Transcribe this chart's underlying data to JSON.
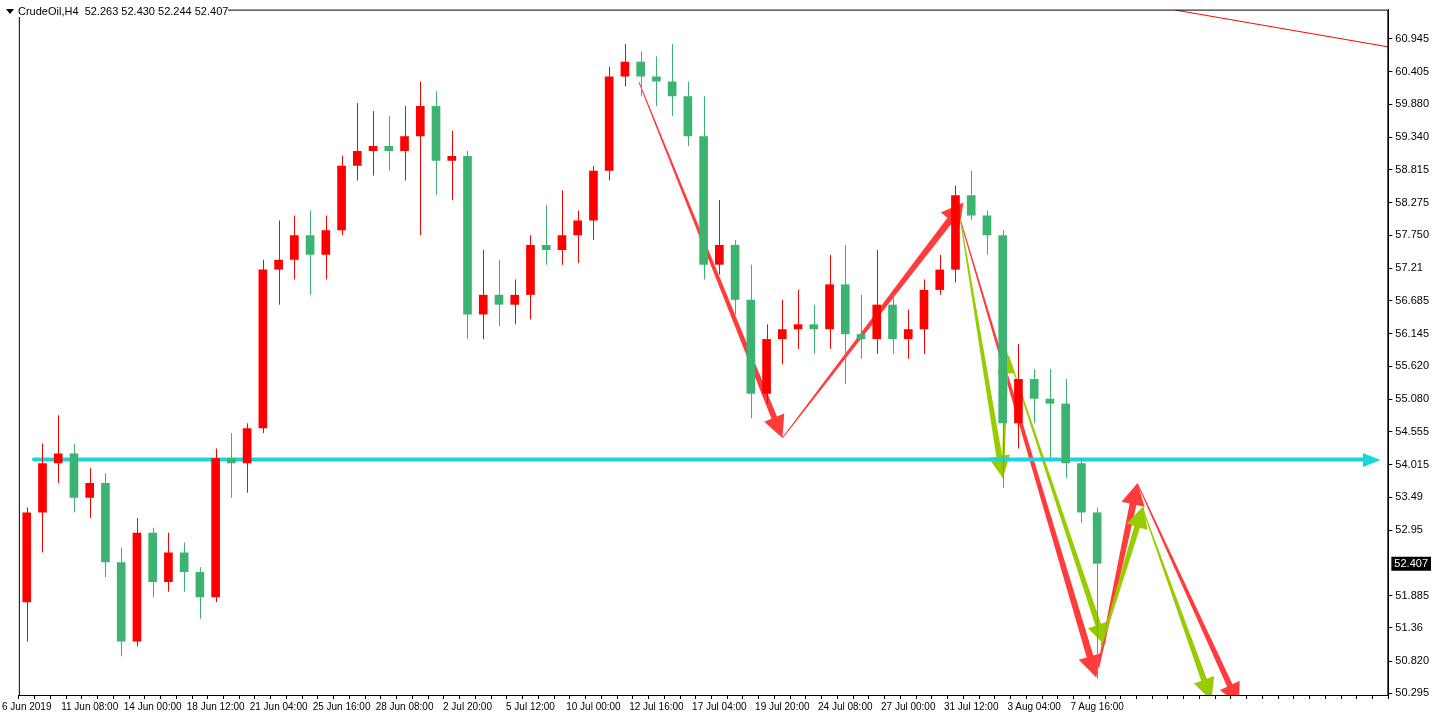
{
  "chart_data": {
    "type": "candlestick",
    "title": "CrudeOil,H4  52.263 52.430 52.244 52.407",
    "categories": [
      "6 Jun 2019",
      null,
      null,
      null,
      "11 Jun 08:00",
      null,
      null,
      null,
      "14 Jun 00:00",
      null,
      null,
      null,
      "18 Jun 12:00",
      null,
      null,
      null,
      "21 Jun 04:00",
      null,
      null,
      null,
      "25 Jun 16:00",
      null,
      null,
      null,
      "28 Jun 08:00",
      null,
      null,
      null,
      "2 Jul 20:00",
      null,
      null,
      null,
      "5 Jul 12:00",
      null,
      null,
      null,
      "10 Jul 00:00",
      null,
      null,
      null,
      "12 Jul 16:00",
      null,
      null,
      null,
      "17 Jul 04:00",
      null,
      null,
      null,
      "19 Jul 20:00",
      null,
      null,
      null,
      "24 Jul 08:00",
      null,
      null,
      null,
      "27 Jul 00:00",
      null,
      null,
      null,
      "31 Jul 12:00",
      null,
      null,
      null,
      "3 Aug 04:00",
      null,
      null,
      null,
      "7 Aug 16:00",
      null,
      null,
      null,
      null,
      null,
      null,
      null,
      null,
      null,
      null,
      null,
      null,
      null,
      null,
      null,
      null,
      null,
      null
    ],
    "ohlc": [
      [
        51.78,
        53.32,
        51.14,
        53.24
      ],
      [
        53.24,
        54.36,
        52.59,
        54.04
      ],
      [
        54.04,
        54.82,
        53.72,
        54.2
      ],
      [
        54.2,
        54.36,
        53.24,
        53.48
      ],
      [
        53.48,
        53.96,
        53.15,
        53.72
      ],
      [
        53.72,
        53.88,
        52.19,
        52.43
      ],
      [
        52.43,
        52.67,
        50.9,
        51.14
      ],
      [
        51.14,
        53.15,
        51.06,
        52.91
      ],
      [
        52.91,
        52.99,
        51.86,
        52.11
      ],
      [
        52.11,
        52.91,
        51.95,
        52.59
      ],
      [
        52.59,
        52.75,
        51.95,
        52.27
      ],
      [
        52.27,
        52.35,
        51.51,
        51.86
      ],
      [
        51.86,
        54.28,
        51.78,
        54.12
      ],
      [
        54.12,
        54.53,
        53.48,
        54.04
      ],
      [
        54.04,
        54.69,
        53.56,
        54.61
      ],
      [
        54.61,
        57.35,
        54.53,
        57.19
      ],
      [
        57.19,
        57.99,
        56.62,
        57.35
      ],
      [
        57.35,
        58.07,
        57.03,
        57.75
      ],
      [
        57.75,
        58.15,
        56.78,
        57.43
      ],
      [
        57.43,
        58.07,
        57.03,
        57.83
      ],
      [
        57.83,
        59.04,
        57.75,
        58.88
      ],
      [
        58.88,
        59.9,
        58.64,
        59.12
      ],
      [
        59.12,
        59.77,
        58.72,
        59.2
      ],
      [
        59.2,
        59.69,
        58.8,
        59.12
      ],
      [
        59.12,
        59.85,
        58.64,
        59.36
      ],
      [
        59.36,
        60.25,
        57.75,
        59.85
      ],
      [
        59.85,
        60.09,
        58.4,
        58.96
      ],
      [
        58.96,
        59.45,
        58.32,
        59.04
      ],
      [
        59.04,
        59.12,
        56.06,
        56.46
      ],
      [
        56.46,
        57.51,
        56.06,
        56.78
      ],
      [
        56.78,
        57.35,
        56.27,
        56.62
      ],
      [
        56.62,
        57.03,
        56.3,
        56.78
      ],
      [
        56.78,
        57.75,
        56.38,
        57.59
      ],
      [
        57.59,
        58.24,
        57.27,
        57.51
      ],
      [
        57.51,
        58.48,
        57.27,
        57.75
      ],
      [
        57.75,
        58.15,
        57.3,
        57.99
      ],
      [
        57.99,
        58.88,
        57.67,
        58.8
      ],
      [
        58.8,
        60.49,
        58.64,
        60.33
      ],
      [
        60.33,
        60.86,
        60.17,
        60.57
      ],
      [
        60.57,
        60.74,
        60.01,
        60.33
      ],
      [
        60.33,
        60.66,
        59.85,
        60.25
      ],
      [
        60.25,
        60.86,
        59.69,
        60.01
      ],
      [
        60.01,
        60.25,
        59.2,
        59.36
      ],
      [
        59.36,
        60.01,
        57.03,
        57.27
      ],
      [
        57.27,
        58.32,
        57.11,
        57.59
      ],
      [
        57.59,
        57.67,
        56.46,
        56.7
      ],
      [
        56.7,
        57.27,
        54.77,
        55.17
      ],
      [
        55.17,
        56.3,
        55.01,
        56.06
      ],
      [
        56.06,
        56.7,
        55.65,
        56.22
      ],
      [
        56.22,
        56.86,
        55.9,
        56.3
      ],
      [
        56.3,
        56.62,
        55.82,
        56.22
      ],
      [
        56.22,
        57.43,
        55.9,
        56.95
      ],
      [
        56.95,
        57.59,
        55.33,
        56.14
      ],
      [
        56.14,
        56.78,
        55.74,
        56.06
      ],
      [
        56.06,
        57.51,
        55.82,
        56.62
      ],
      [
        56.62,
        56.78,
        55.82,
        56.06
      ],
      [
        56.06,
        56.54,
        55.74,
        56.22
      ],
      [
        56.22,
        57.03,
        55.82,
        56.86
      ],
      [
        56.86,
        57.43,
        56.78,
        57.19
      ],
      [
        57.19,
        58.56,
        56.98,
        58.4
      ],
      [
        58.4,
        58.8,
        57.99,
        58.07
      ],
      [
        58.07,
        58.15,
        57.43,
        57.75
      ],
      [
        57.75,
        57.83,
        53.64,
        54.69
      ],
      [
        54.69,
        55.98,
        54.28,
        55.41
      ],
      [
        55.41,
        55.57,
        54.69,
        55.09
      ],
      [
        55.09,
        55.57,
        54.12,
        55.01
      ],
      [
        55.01,
        55.41,
        53.8,
        54.04
      ],
      [
        54.04,
        54.12,
        53.07,
        53.24
      ],
      [
        53.24,
        53.32,
        50.53,
        52.407
      ],
      null,
      null,
      null,
      null,
      null,
      null,
      null,
      null,
      null,
      null,
      null,
      null,
      null,
      null,
      null,
      null,
      null,
      null
    ],
    "colors": [
      "#ff0000",
      "#ff0000",
      "#ff0000",
      "#3cb371",
      "#ff0000",
      "#3cb371",
      "#3cb371",
      "#ff0000",
      "#3cb371",
      "#ff0000",
      "#3cb371",
      "#3cb371",
      "#ff0000",
      "#3cb371",
      "#ff0000",
      "#ff0000",
      "#ff0000",
      "#ff0000",
      "#3cb371",
      "#ff0000",
      "#ff0000",
      "#ff0000",
      "#ff0000",
      "#3cb371",
      "#ff0000",
      "#ff0000",
      "#3cb371",
      "#ff0000",
      "#3cb371",
      "#ff0000",
      "#3cb371",
      "#ff0000",
      "#ff0000",
      "#3cb371",
      "#ff0000",
      "#ff0000",
      "#ff0000",
      "#ff0000",
      "#ff0000",
      "#3cb371",
      "#3cb371",
      "#3cb371",
      "#3cb371",
      "#3cb371",
      "#ff0000",
      "#3cb371",
      "#3cb371",
      "#ff0000",
      "#ff0000",
      "#ff0000",
      "#3cb371",
      "#ff0000",
      "#3cb371",
      "#3cb371",
      "#ff0000",
      "#3cb371",
      "#ff0000",
      "#ff0000",
      "#ff0000",
      "#ff0000",
      "#3cb371",
      "#3cb371",
      "#3cb371",
      "#ff0000",
      "#3cb371",
      "#3cb371",
      "#3cb371",
      "#3cb371",
      "#3cb371",
      null,
      null,
      null,
      null,
      null,
      null,
      null,
      null,
      null,
      null,
      null,
      null,
      null,
      null,
      null,
      null,
      null,
      null
    ],
    "ylim": [
      50.27,
      61.42
    ],
    "yticks": [
      50.295,
      {
        "value": 50.82,
        "label": "50.820"
      },
      51.36,
      51.885,
      52.95,
      53.49,
      54.015,
      54.555,
      {
        "value": 55.08,
        "label": "55.080"
      },
      {
        "value": 55.62,
        "label": "55.620"
      },
      56.145,
      56.685,
      57.21,
      {
        "value": 57.75,
        "label": "57.750"
      },
      58.275,
      58.815,
      {
        "value": 59.34,
        "label": "59.340"
      },
      {
        "value": 59.88,
        "label": "59.880"
      },
      60.405,
      60.945
    ],
    "ref_lines": [
      {
        "axis": "y",
        "value": 54.1,
        "color": "#1ad6dc"
      }
    ],
    "annotations": [
      "52.407"
    ]
  }
}
